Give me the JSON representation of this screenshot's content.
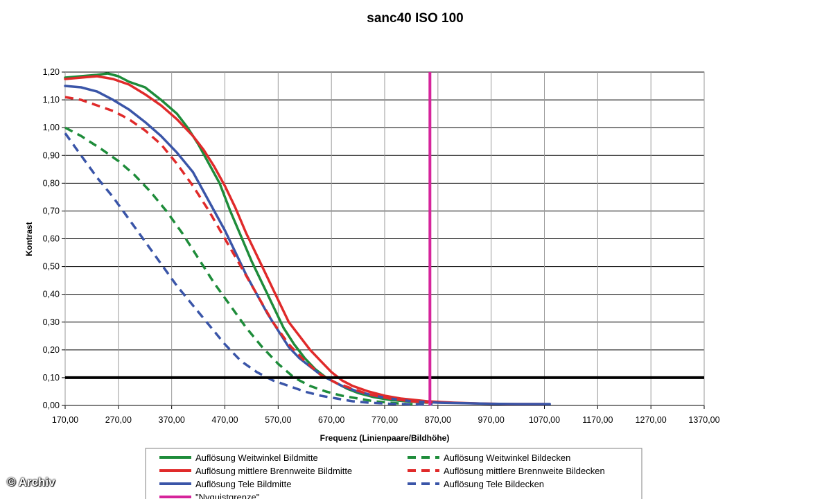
{
  "chart_data": {
    "type": "line",
    "title": "sanc40   ISO 100",
    "xlabel": "Frequenz (Linienpaare/Bildhöhe)",
    "ylabel": "Kontrast",
    "xlim": [
      170,
      1370
    ],
    "ylim": [
      0,
      1.2
    ],
    "x_ticks": [
      "170,00",
      "270,00",
      "370,00",
      "470,00",
      "570,00",
      "670,00",
      "770,00",
      "870,00",
      "970,00",
      "1070,00",
      "1170,00",
      "1270,00",
      "1370,00"
    ],
    "y_ticks": [
      "0,00",
      "0,10",
      "0,20",
      "0,30",
      "0,40",
      "0,50",
      "0,60",
      "0,70",
      "0,80",
      "0,90",
      "1,00",
      "1,10",
      "1,20"
    ],
    "grid": true,
    "legend_position": "bottom",
    "reference_lines": [
      {
        "orientation": "horizontal",
        "value": 0.1,
        "color": "#000000"
      },
      {
        "orientation": "vertical",
        "value": 855,
        "color": "#d6249b",
        "name": "\"Nyquistgrenze\""
      }
    ],
    "series": [
      {
        "name": "Auflösung Weitwinkel Bildmitte",
        "color": "#1e8c3a",
        "dash": false,
        "x": [
          170,
          200,
          230,
          250,
          270,
          290,
          320,
          350,
          380,
          400,
          420,
          440,
          460,
          480,
          500,
          520,
          540,
          560,
          580,
          600,
          620,
          640,
          660,
          680,
          700,
          720,
          750,
          780,
          810,
          850
        ],
        "y": [
          1.18,
          1.185,
          1.19,
          1.195,
          1.185,
          1.165,
          1.145,
          1.1,
          1.05,
          1.0,
          0.94,
          0.87,
          0.8,
          0.7,
          0.61,
          0.52,
          0.44,
          0.36,
          0.28,
          0.22,
          0.17,
          0.13,
          0.1,
          0.08,
          0.06,
          0.045,
          0.03,
          0.02,
          0.015,
          0.01
        ]
      },
      {
        "name": "Auflösung mittlere Brennweite Bildmitte",
        "color": "#e02a2a",
        "dash": false,
        "x": [
          170,
          200,
          230,
          260,
          290,
          320,
          350,
          380,
          410,
          430,
          450,
          470,
          490,
          510,
          530,
          550,
          570,
          590,
          610,
          630,
          650,
          670,
          690,
          710,
          740,
          770,
          800,
          850,
          900,
          950,
          1000,
          1070
        ],
        "y": [
          1.175,
          1.18,
          1.185,
          1.175,
          1.155,
          1.12,
          1.08,
          1.03,
          0.97,
          0.92,
          0.86,
          0.79,
          0.71,
          0.62,
          0.54,
          0.46,
          0.38,
          0.3,
          0.25,
          0.2,
          0.16,
          0.12,
          0.09,
          0.07,
          0.05,
          0.035,
          0.025,
          0.015,
          0.01,
          0.007,
          0.005,
          0.005
        ]
      },
      {
        "name": "Auflösung Tele Bildmitte",
        "color": "#3a55a8",
        "dash": false,
        "x": [
          170,
          200,
          230,
          260,
          290,
          320,
          350,
          380,
          410,
          430,
          450,
          470,
          490,
          510,
          530,
          550,
          570,
          590,
          610,
          630,
          650,
          670,
          690,
          720,
          750,
          780,
          820,
          870,
          920,
          970,
          1020,
          1080
        ],
        "y": [
          1.15,
          1.145,
          1.13,
          1.1,
          1.065,
          1.02,
          0.97,
          0.91,
          0.84,
          0.77,
          0.7,
          0.63,
          0.55,
          0.47,
          0.4,
          0.33,
          0.27,
          0.21,
          0.17,
          0.14,
          0.11,
          0.09,
          0.07,
          0.05,
          0.035,
          0.025,
          0.015,
          0.01,
          0.008,
          0.006,
          0.005,
          0.005
        ]
      },
      {
        "name": "Auflösung Weitwinkel Bildecken",
        "color": "#1e8c3a",
        "dash": true,
        "x": [
          170,
          200,
          240,
          270,
          300,
          330,
          360,
          390,
          420,
          450,
          480,
          510,
          540,
          570,
          600,
          630,
          660,
          690,
          720,
          750,
          780,
          810,
          840
        ],
        "y": [
          1.0,
          0.97,
          0.92,
          0.88,
          0.83,
          0.77,
          0.7,
          0.62,
          0.53,
          0.44,
          0.36,
          0.28,
          0.21,
          0.15,
          0.1,
          0.07,
          0.05,
          0.035,
          0.025,
          0.015,
          0.01,
          0.005,
          0.003
        ]
      },
      {
        "name": "Auflösung mittlere Brennweite Bildecken",
        "color": "#e02a2a",
        "dash": true,
        "x": [
          170,
          200,
          230,
          260,
          290,
          320,
          350,
          380,
          410,
          440,
          470,
          500,
          530,
          560,
          590,
          620,
          650,
          680,
          710,
          740,
          780,
          820,
          860
        ],
        "y": [
          1.11,
          1.1,
          1.08,
          1.06,
          1.03,
          0.99,
          0.94,
          0.87,
          0.79,
          0.7,
          0.6,
          0.5,
          0.4,
          0.3,
          0.22,
          0.16,
          0.11,
          0.08,
          0.06,
          0.04,
          0.025,
          0.015,
          0.01
        ]
      },
      {
        "name": "Auflösung Tele Bildecken",
        "color": "#3a55a8",
        "dash": true,
        "x": [
          170,
          200,
          230,
          260,
          290,
          320,
          350,
          380,
          410,
          440,
          470,
          500,
          530,
          560,
          590,
          620,
          650,
          680,
          710,
          740,
          780,
          820,
          860
        ],
        "y": [
          0.98,
          0.9,
          0.82,
          0.75,
          0.67,
          0.59,
          0.51,
          0.43,
          0.36,
          0.29,
          0.22,
          0.16,
          0.12,
          0.09,
          0.07,
          0.05,
          0.035,
          0.025,
          0.015,
          0.01,
          0.006,
          0.004,
          0.003
        ]
      }
    ]
  },
  "copyright": "© Archiv"
}
